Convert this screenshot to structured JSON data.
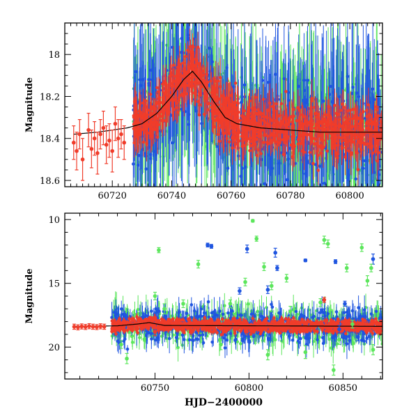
{
  "colors": {
    "red": "#f03c2a",
    "green": "#5ce65c",
    "blue": "#1f55e0",
    "model": "#000000"
  },
  "chart_data": [
    {
      "type": "scatter",
      "ylabel": "Magnitude",
      "xlabel": "",
      "xlim": [
        60704,
        60811
      ],
      "ylim": [
        18.63,
        17.85
      ],
      "y_inverted": true,
      "xticks": [
        60720,
        60740,
        60760,
        60780,
        60800
      ],
      "yticks": [
        18,
        18.2,
        18.4,
        18.6
      ],
      "ytick_labels": [
        "18",
        "18.2",
        "18.4",
        "18.6"
      ],
      "grid": false,
      "legend": "none",
      "model_line": {
        "x": [
          60707,
          60715,
          60725,
          60730,
          60735,
          60740,
          60744,
          60747,
          60750,
          60754,
          60758,
          60762,
          60770,
          60780,
          60790,
          60800,
          60810
        ],
        "y": [
          18.38,
          18.37,
          18.35,
          18.33,
          18.28,
          18.2,
          18.12,
          18.08,
          18.13,
          18.22,
          18.3,
          18.33,
          18.35,
          18.36,
          18.37,
          18.37,
          18.37
        ]
      },
      "series": [
        {
          "color": "red",
          "x": [
            60707,
            60708,
            60709,
            60710,
            60712,
            60713,
            60714,
            60715,
            60716,
            60717,
            60718,
            60719,
            60720,
            60721,
            60722,
            60723,
            60724
          ],
          "y": [
            18.42,
            18.46,
            18.38,
            18.5,
            18.36,
            18.45,
            18.4,
            18.47,
            18.38,
            18.35,
            18.43,
            18.41,
            18.46,
            18.33,
            18.4,
            18.38,
            18.42
          ],
          "err": [
            0.08,
            0.09,
            0.07,
            0.1,
            0.08,
            0.09,
            0.08,
            0.1,
            0.07,
            0.08,
            0.09,
            0.08,
            0.1,
            0.08,
            0.09,
            0.07,
            0.08
          ]
        }
      ]
    },
    {
      "type": "scatter",
      "ylabel": "Magnitude",
      "xlabel": "HJD−2400000",
      "xlim": [
        60702,
        60871
      ],
      "ylim": [
        22.5,
        9.5
      ],
      "y_inverted": true,
      "xticks": [
        60750,
        60800,
        60850
      ],
      "yticks": [
        10,
        15,
        20
      ],
      "ytick_labels": [
        "10",
        "15",
        "20"
      ],
      "grid": false,
      "legend": "none",
      "model_line": {
        "x": [
          60707,
          60730,
          60740,
          60747,
          60755,
          60870
        ],
        "y": [
          18.38,
          18.33,
          18.2,
          18.08,
          18.3,
          18.37
        ]
      },
      "series": [
        {
          "color": "red",
          "x": [
            60707,
            60709,
            60711,
            60713,
            60715,
            60717,
            60719,
            60721,
            60723,
            60750,
            60840
          ],
          "y": [
            18.4,
            18.45,
            18.38,
            18.42,
            18.36,
            18.4,
            18.43,
            18.37,
            18.4,
            18.8,
            16.3
          ],
          "err": [
            0.2,
            0.2,
            0.2,
            0.2,
            0.2,
            0.2,
            0.2,
            0.2,
            0.2,
            0.3,
            0.2
          ]
        },
        {
          "color": "blue",
          "x": [
            60778,
            60780,
            60795,
            60799,
            60810,
            60814,
            60815,
            60830,
            60840,
            60846,
            60848,
            60851,
            60858,
            60866
          ],
          "y": [
            12.0,
            12.1,
            15.6,
            12.3,
            15.5,
            12.6,
            13.8,
            13.2,
            17.3,
            13.3,
            18.6,
            16.6,
            19.2,
            13.1
          ],
          "err": [
            0.15,
            0.15,
            0.25,
            0.3,
            0.3,
            0.35,
            0.2,
            0.1,
            0.3,
            0.15,
            0.3,
            0.2,
            0.3,
            0.4
          ]
        },
        {
          "color": "green",
          "x": [
            60732,
            60735,
            60750,
            60752,
            60755,
            60765,
            60773,
            60785,
            60790,
            60798,
            60802,
            60804,
            60808,
            60810,
            60812,
            60820,
            60822,
            60830,
            60838,
            60840,
            60842,
            60845,
            60848,
            60852,
            60855,
            60860,
            60863,
            60865,
            60866
          ],
          "y": [
            19.8,
            20.9,
            16.0,
            12.4,
            17.0,
            16.6,
            13.5,
            19.8,
            16.6,
            14.9,
            10.1,
            11.5,
            13.7,
            20.6,
            15.2,
            14.6,
            17.2,
            20.4,
            16.5,
            11.6,
            11.9,
            21.8,
            19.4,
            13.8,
            18.2,
            12.2,
            14.8,
            13.8,
            20.2
          ],
          "err": [
            0.3,
            0.4,
            0.3,
            0.2,
            0.4,
            0.3,
            0.3,
            0.4,
            0.3,
            0.3,
            0.1,
            0.2,
            0.3,
            0.4,
            0.3,
            0.3,
            0.4,
            0.5,
            0.3,
            0.3,
            0.3,
            0.4,
            0.4,
            0.3,
            0.3,
            0.3,
            0.4,
            0.3,
            0.4
          ]
        }
      ]
    }
  ]
}
